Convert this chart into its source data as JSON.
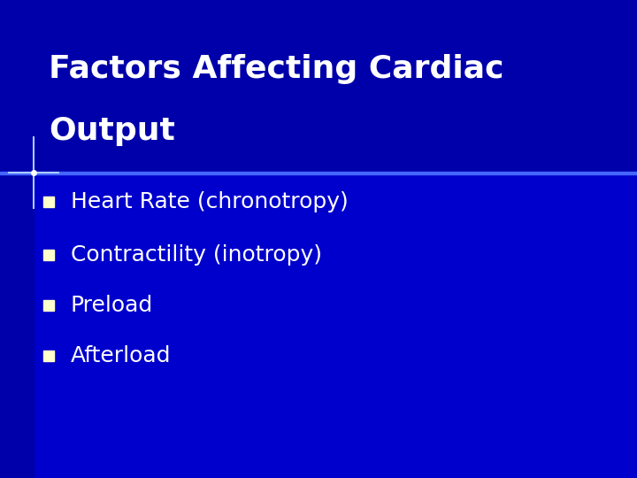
{
  "title_line1": "Factors Affecting Cardiac",
  "title_line2": "Output",
  "bullet_items": [
    "Heart Rate (chronotropy)",
    "Contractility (inotropy)",
    "Preload",
    "Afterload"
  ],
  "bg_color": "#0000CC",
  "title_area_color": "#0000AA",
  "left_bar_color": "#0000AA",
  "title_color": "#FFFFFF",
  "bullet_color": "#FFFFFF",
  "bullet_marker_color": "#FFFFCC",
  "divider_color": "#4466FF",
  "title_fontsize": 26,
  "bullet_fontsize": 18
}
